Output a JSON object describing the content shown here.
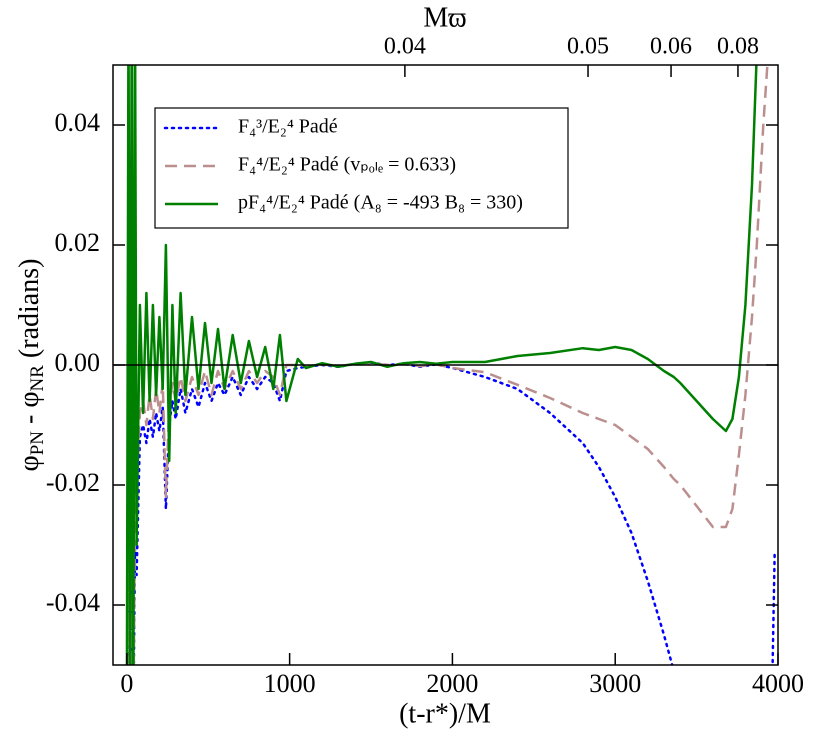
{
  "chart_data": {
    "type": "line",
    "xlabel": "(t-r*)/M",
    "ylabel": [
      "φ",
      "PN",
      " - φ",
      "NR",
      " (radians)"
    ],
    "xlim": [
      -85,
      4000
    ],
    "ylim": [
      -0.05,
      0.05
    ],
    "xticks": [
      0,
      1000,
      2000,
      3000,
      4000
    ],
    "yticks": [
      -0.04,
      -0.02,
      {
        "value": 0,
        "label": "0.00"
      },
      0.02,
      0.04
    ],
    "zero_line": true,
    "legend": "upper left",
    "top_axis": {
      "label": "Mϖ",
      "ticks": [
        0.04,
        0.05,
        0.06,
        0.08
      ],
      "x": [
        1708,
        2833,
        3343,
        3754
      ]
    },
    "x": [
      0,
      10,
      20,
      30,
      40,
      50,
      60,
      80,
      100,
      120,
      140,
      160,
      180,
      200,
      220,
      240,
      260,
      280,
      300,
      330,
      360,
      400,
      440,
      480,
      520,
      560,
      600,
      650,
      700,
      750,
      800,
      850,
      900,
      940,
      980,
      1050,
      1100,
      1200,
      1300,
      1400,
      1500,
      1600,
      1700,
      1800,
      1900,
      2000,
      2200,
      2400,
      2600,
      2800,
      2900,
      3000,
      3100,
      3200,
      3300,
      3360,
      3400,
      3500,
      3600,
      3680,
      3720,
      3760,
      3800,
      3840,
      3870,
      3910,
      3940,
      3960,
      3980
    ],
    "series": [
      {
        "name": "F₄³/E₂⁴ Padé",
        "color": "#0000ff",
        "style": "dotted",
        "values": [
          -0.06,
          -0.04,
          -0.06,
          -0.035,
          -0.06,
          -0.03,
          -0.035,
          -0.012,
          -0.01,
          -0.013,
          -0.009,
          -0.012,
          -0.008,
          -0.011,
          -0.007,
          -0.024,
          -0.01,
          -0.006,
          -0.009,
          -0.004,
          -0.008,
          -0.004,
          -0.007,
          -0.003,
          -0.006,
          -0.003,
          -0.005,
          -0.002,
          -0.005,
          -0.002,
          -0.004,
          -0.002,
          -0.003,
          -0.006,
          -0.001,
          -0.0005,
          -0.0003,
          0,
          -0.0003,
          0.0002,
          0.0004,
          0,
          0.0002,
          -0.0003,
          0.0001,
          -0.0005,
          -0.002,
          -0.004,
          -0.008,
          -0.013,
          -0.017,
          -0.022,
          -0.028,
          -0.036,
          -0.045,
          -0.051,
          null,
          null,
          null,
          null,
          null,
          null,
          null,
          null,
          null,
          null,
          null,
          -0.06,
          -0.031
        ]
      },
      {
        "name": "F₄⁴/E₂⁴ Padé (vₚₒₗₑ = 0.633)",
        "color": "#bc8f8f",
        "style": "dashed",
        "values": [
          -0.06,
          -0.03,
          -0.06,
          -0.03,
          -0.06,
          -0.025,
          -0.02,
          -0.008,
          -0.006,
          -0.01,
          -0.005,
          -0.009,
          -0.004,
          -0.008,
          -0.003,
          -0.022,
          -0.007,
          -0.003,
          -0.006,
          -0.002,
          -0.006,
          -0.002,
          -0.005,
          -0.001,
          -0.005,
          -0.001,
          -0.004,
          -0.001,
          -0.004,
          -0.001,
          -0.003,
          -0.001,
          -0.002,
          -0.005,
          0,
          0,
          -0.0002,
          0.0001,
          -0.0002,
          0.0002,
          0.0003,
          0,
          0.0002,
          -0.0002,
          0.0001,
          -0.0005,
          -0.0012,
          -0.0033,
          -0.0055,
          -0.008,
          -0.009,
          -0.01,
          -0.012,
          -0.014,
          -0.017,
          -0.019,
          -0.02,
          -0.0235,
          -0.027,
          -0.027,
          -0.024,
          -0.015,
          -0.005,
          0.008,
          0.02,
          0.04,
          0.052,
          null,
          null
        ]
      },
      {
        "name": "pF₄⁴/E₂⁴ Padé (A₈ = -493 B₈ = 330)",
        "color": "#008000",
        "style": "solid",
        "values": [
          -0.06,
          0.06,
          -0.06,
          0.06,
          -0.06,
          0.06,
          -0.03,
          0.01,
          -0.008,
          0.012,
          -0.006,
          0.01,
          -0.005,
          0.008,
          -0.004,
          0.02,
          -0.016,
          0.01,
          -0.008,
          0.012,
          -0.005,
          0.008,
          -0.004,
          0.007,
          -0.003,
          0.006,
          -0.004,
          0.005,
          -0.003,
          0.004,
          -0.002,
          0.003,
          -0.004,
          0.005,
          -0.006,
          0.001,
          -0.0005,
          0.0003,
          -0.0003,
          0.0002,
          0.0005,
          -0.0003,
          0.0003,
          0.0005,
          0.0002,
          0.0005,
          0.0005,
          0.0015,
          0.002,
          0.0028,
          0.0025,
          0.003,
          0.0025,
          0.001,
          -0.001,
          -0.002,
          -0.003,
          -0.006,
          -0.009,
          -0.011,
          -0.009,
          -0.002,
          0.01,
          0.03,
          0.052,
          null,
          null,
          null,
          null
        ]
      }
    ]
  }
}
